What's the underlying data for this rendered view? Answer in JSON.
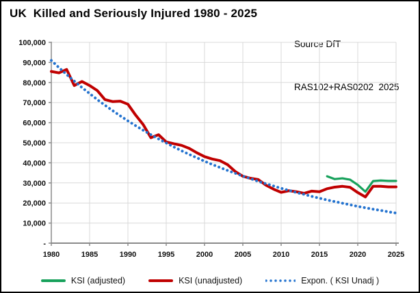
{
  "header": {
    "title": "UK  Killed and Seriously Injured 1980 - 2025",
    "source_line1": "Source DfT",
    "source_line2": "RAS102+RAS0202  2025"
  },
  "chart_data": {
    "type": "line",
    "title": "UK  Killed and Seriously Injured 1980 - 2025",
    "xlabel": "",
    "ylabel": "",
    "xlim": [
      1980,
      2025
    ],
    "ylim": [
      0,
      100000
    ],
    "grid": true,
    "legend_position": "bottom",
    "x_ticks": [
      1980,
      1985,
      1990,
      1995,
      2000,
      2005,
      2010,
      2015,
      2020,
      2025
    ],
    "x_tick_labels": [
      "1980",
      "1985",
      "1990",
      "1995",
      "2000",
      "2005",
      "2010",
      "2015",
      "2020",
      "2025"
    ],
    "y_ticks": [
      0,
      10000,
      20000,
      30000,
      40000,
      50000,
      60000,
      70000,
      80000,
      90000,
      100000
    ],
    "y_tick_labels": [
      "-",
      "10,000",
      "20,000",
      "30,000",
      "40,000",
      "50,000",
      "60,000",
      "70,000",
      "80,000",
      "90,000",
      "100,000"
    ],
    "colors": {
      "adjusted_green": "#17a15b",
      "unadjusted_red": "#c00000",
      "trendline_blue": "#2473cf",
      "gridline": "#d9d9d9",
      "axis": "#8a8a8a"
    },
    "series": [
      {
        "id": "ksi-adjusted",
        "name": "KSI (adjusted)",
        "color": "#17a15b",
        "style": "solid",
        "line_width": 3.2,
        "x_start": 2016,
        "values": [
          33300,
          31900,
          32300,
          31600,
          29000,
          25600,
          30900,
          31200,
          31000,
          31000
        ]
      },
      {
        "id": "ksi-unadjusted",
        "name": "KSI (unadjusted)",
        "color": "#c00000",
        "style": "solid",
        "line_width": 4,
        "x_start": 1980,
        "values": [
          85500,
          84800,
          86500,
          78500,
          80500,
          78500,
          76000,
          71500,
          70500,
          70700,
          69200,
          63800,
          59000,
          52500,
          54000,
          50400,
          49500,
          48700,
          47200,
          45000,
          43100,
          41900,
          41100,
          39100,
          35700,
          33300,
          32300,
          31700,
          28900,
          26900,
          25300,
          26100,
          25600,
          24800,
          25900,
          25600,
          27100,
          27900,
          28300,
          27800,
          25200,
          23000,
          28300,
          28300,
          28000,
          28000
        ]
      },
      {
        "id": "expon-ksi-unadj",
        "name": "Expon. ( KSI Unadj )",
        "color": "#2473cf",
        "style": "dotted",
        "line_width": 4,
        "x_start": 1980,
        "values": [
          91000,
          87400,
          84000,
          80700,
          77500,
          74500,
          71500,
          68700,
          66000,
          63400,
          60900,
          58500,
          56200,
          54000,
          51900,
          49900,
          47900,
          46000,
          44200,
          42500,
          40800,
          39200,
          37700,
          36200,
          34800,
          33400,
          32100,
          30800,
          29600,
          28500,
          27300,
          26300,
          25200,
          24300,
          23300,
          22400,
          21500,
          20700,
          19900,
          19100,
          18300,
          17600,
          16900,
          16300,
          15600,
          15000
        ]
      }
    ]
  }
}
